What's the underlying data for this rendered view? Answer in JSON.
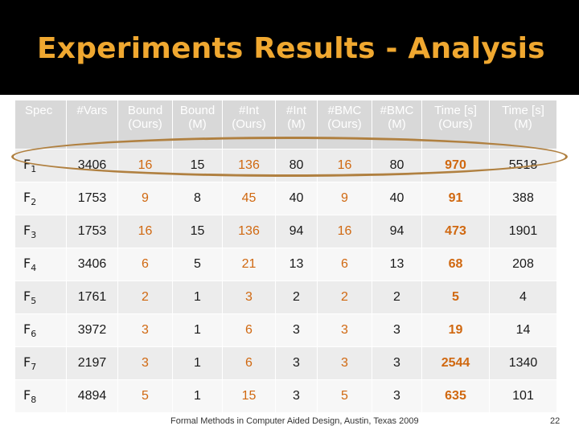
{
  "title": "Experiments Results - Analysis",
  "headers": [
    {
      "l1": "Spec",
      "l2": ""
    },
    {
      "l1": "#Vars",
      "l2": ""
    },
    {
      "l1": "Bound",
      "l2": "(Ours)"
    },
    {
      "l1": "Bound",
      "l2": "(M)"
    },
    {
      "l1": "#Int",
      "l2": "(Ours)"
    },
    {
      "l1": "#Int",
      "l2": "(M)"
    },
    {
      "l1": "#BMC",
      "l2": "(Ours)"
    },
    {
      "l1": "#BMC",
      "l2": "(M)"
    },
    {
      "l1": "Time [s]",
      "l2": "(Ours)"
    },
    {
      "l1": "Time [s]",
      "l2": "(M)"
    }
  ],
  "rows": [
    {
      "spec": "F",
      "sub": "1",
      "cells": [
        "3406",
        "16",
        "15",
        "136",
        "80",
        "16",
        "80",
        "970",
        "5518"
      ]
    },
    {
      "spec": "F",
      "sub": "2",
      "cells": [
        "1753",
        "9",
        "8",
        "45",
        "40",
        "9",
        "40",
        "91",
        "388"
      ]
    },
    {
      "spec": "F",
      "sub": "3",
      "cells": [
        "1753",
        "16",
        "15",
        "136",
        "94",
        "16",
        "94",
        "473",
        "1901"
      ]
    },
    {
      "spec": "F",
      "sub": "4",
      "cells": [
        "3406",
        "6",
        "5",
        "21",
        "13",
        "6",
        "13",
        "68",
        "208"
      ]
    },
    {
      "spec": "F",
      "sub": "5",
      "cells": [
        "1761",
        "2",
        "1",
        "3",
        "2",
        "2",
        "2",
        "5",
        "4"
      ]
    },
    {
      "spec": "F",
      "sub": "6",
      "cells": [
        "3972",
        "3",
        "1",
        "6",
        "3",
        "3",
        "3",
        "19",
        "14"
      ]
    },
    {
      "spec": "F",
      "sub": "7",
      "cells": [
        "2197",
        "3",
        "1",
        "6",
        "3",
        "3",
        "3",
        "2544",
        "1340"
      ]
    },
    {
      "spec": "F",
      "sub": "8",
      "cells": [
        "4894",
        "5",
        "1",
        "15",
        "3",
        "5",
        "3",
        "635",
        "101"
      ]
    }
  ],
  "footer": "Formal Methods in Computer Aided Design, Austin, Texas 2009",
  "page_number": "22",
  "colors": {
    "title": "#f0a830",
    "ours_value": "#d06810",
    "highlight_oval": "#b08040"
  }
}
